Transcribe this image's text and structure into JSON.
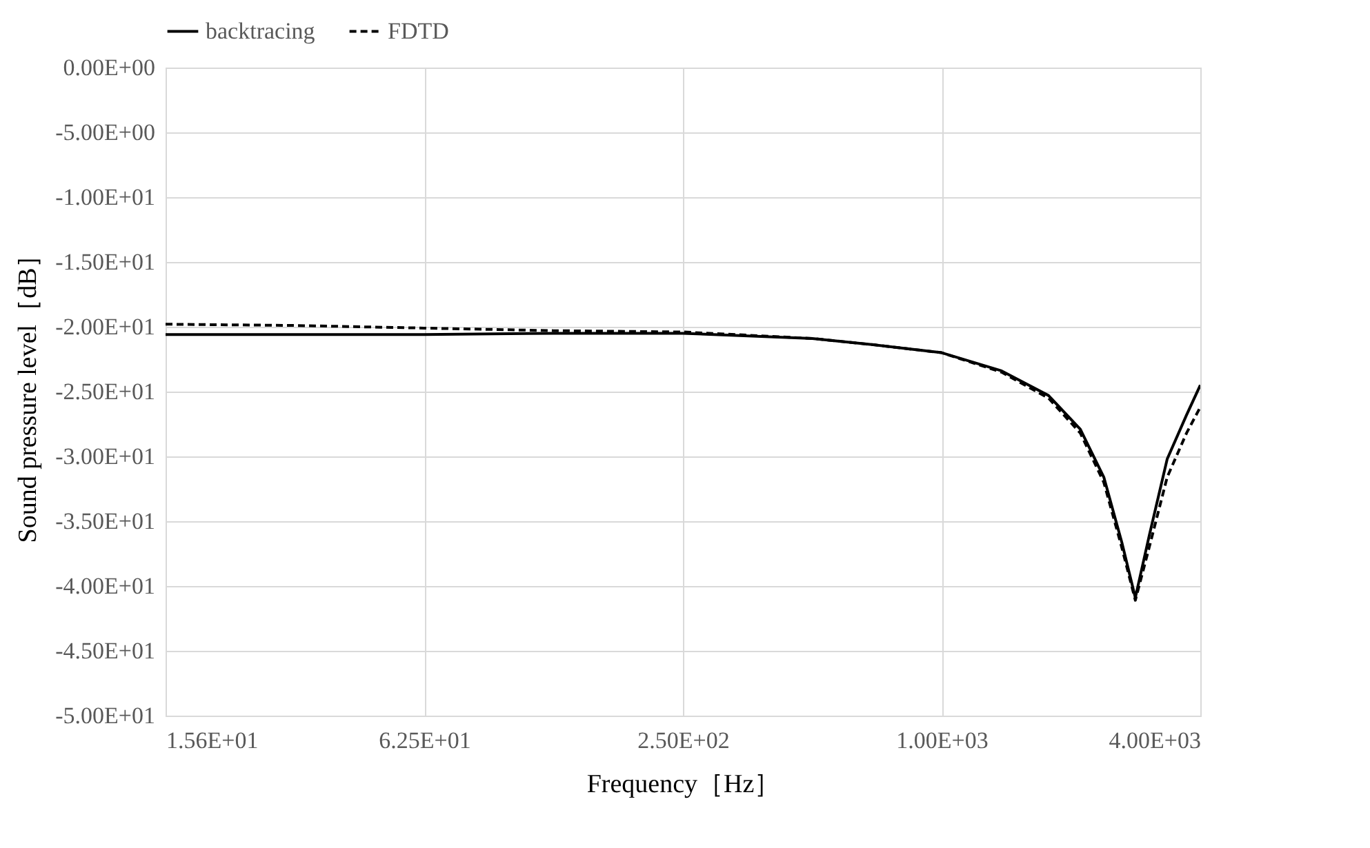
{
  "chart_data": {
    "type": "line",
    "xlabel": "Frequency［Hz］",
    "ylabel": "Sound pressure level［dB］",
    "log": "x",
    "x": [
      15.625,
      31.25,
      62.5,
      125,
      250,
      500,
      700,
      1000,
      1379,
      1773,
      2103,
      2385,
      2625,
      2824,
      3043,
      3350,
      3716,
      4000
    ],
    "series": [
      {
        "name": "backtracing",
        "color": "#000000",
        "line_style": "solid",
        "values": [
          -20.6,
          -20.6,
          -20.6,
          -20.5,
          -20.5,
          -20.9,
          -21.4,
          -22.0,
          -23.4,
          -25.3,
          -27.9,
          -31.6,
          -36.6,
          -40.9,
          -36.1,
          -30.2,
          -26.8,
          -24.5
        ]
      },
      {
        "name": "FDTD",
        "color": "#000000",
        "line_style": "dashed",
        "values": [
          -19.8,
          -19.9,
          -20.1,
          -20.3,
          -20.4,
          -20.9,
          -21.4,
          -22.0,
          -23.5,
          -25.5,
          -28.2,
          -32.0,
          -37.0,
          -41.1,
          -37.0,
          -31.6,
          -28.2,
          -26.2
        ]
      }
    ],
    "xlim": [
      15.625,
      4000
    ],
    "xticks": [
      {
        "value": 15.625,
        "label": "1.56E+01"
      },
      {
        "value": 62.5,
        "label": "6.25E+01"
      },
      {
        "value": 250,
        "label": "2.50E+02"
      },
      {
        "value": 1000,
        "label": "1.00E+03"
      },
      {
        "value": 4000,
        "label": "4.00E+03"
      }
    ],
    "ylim": [
      -50,
      0
    ],
    "yticks": [
      {
        "value": 0,
        "label": "0.00E+00"
      },
      {
        "value": -5,
        "label": "-5.00E+00"
      },
      {
        "value": -10,
        "label": "-1.00E+01"
      },
      {
        "value": -15,
        "label": "-1.50E+01"
      },
      {
        "value": -20,
        "label": "-2.00E+01"
      },
      {
        "value": -25,
        "label": "-2.50E+01"
      },
      {
        "value": -30,
        "label": "-3.00E+01"
      },
      {
        "value": -35,
        "label": "-3.50E+01"
      },
      {
        "value": -40,
        "label": "-4.00E+01"
      },
      {
        "value": -45,
        "label": "-4.50E+01"
      },
      {
        "value": -50,
        "label": "-5.00E+01"
      }
    ],
    "grid": true,
    "legend": "top"
  }
}
